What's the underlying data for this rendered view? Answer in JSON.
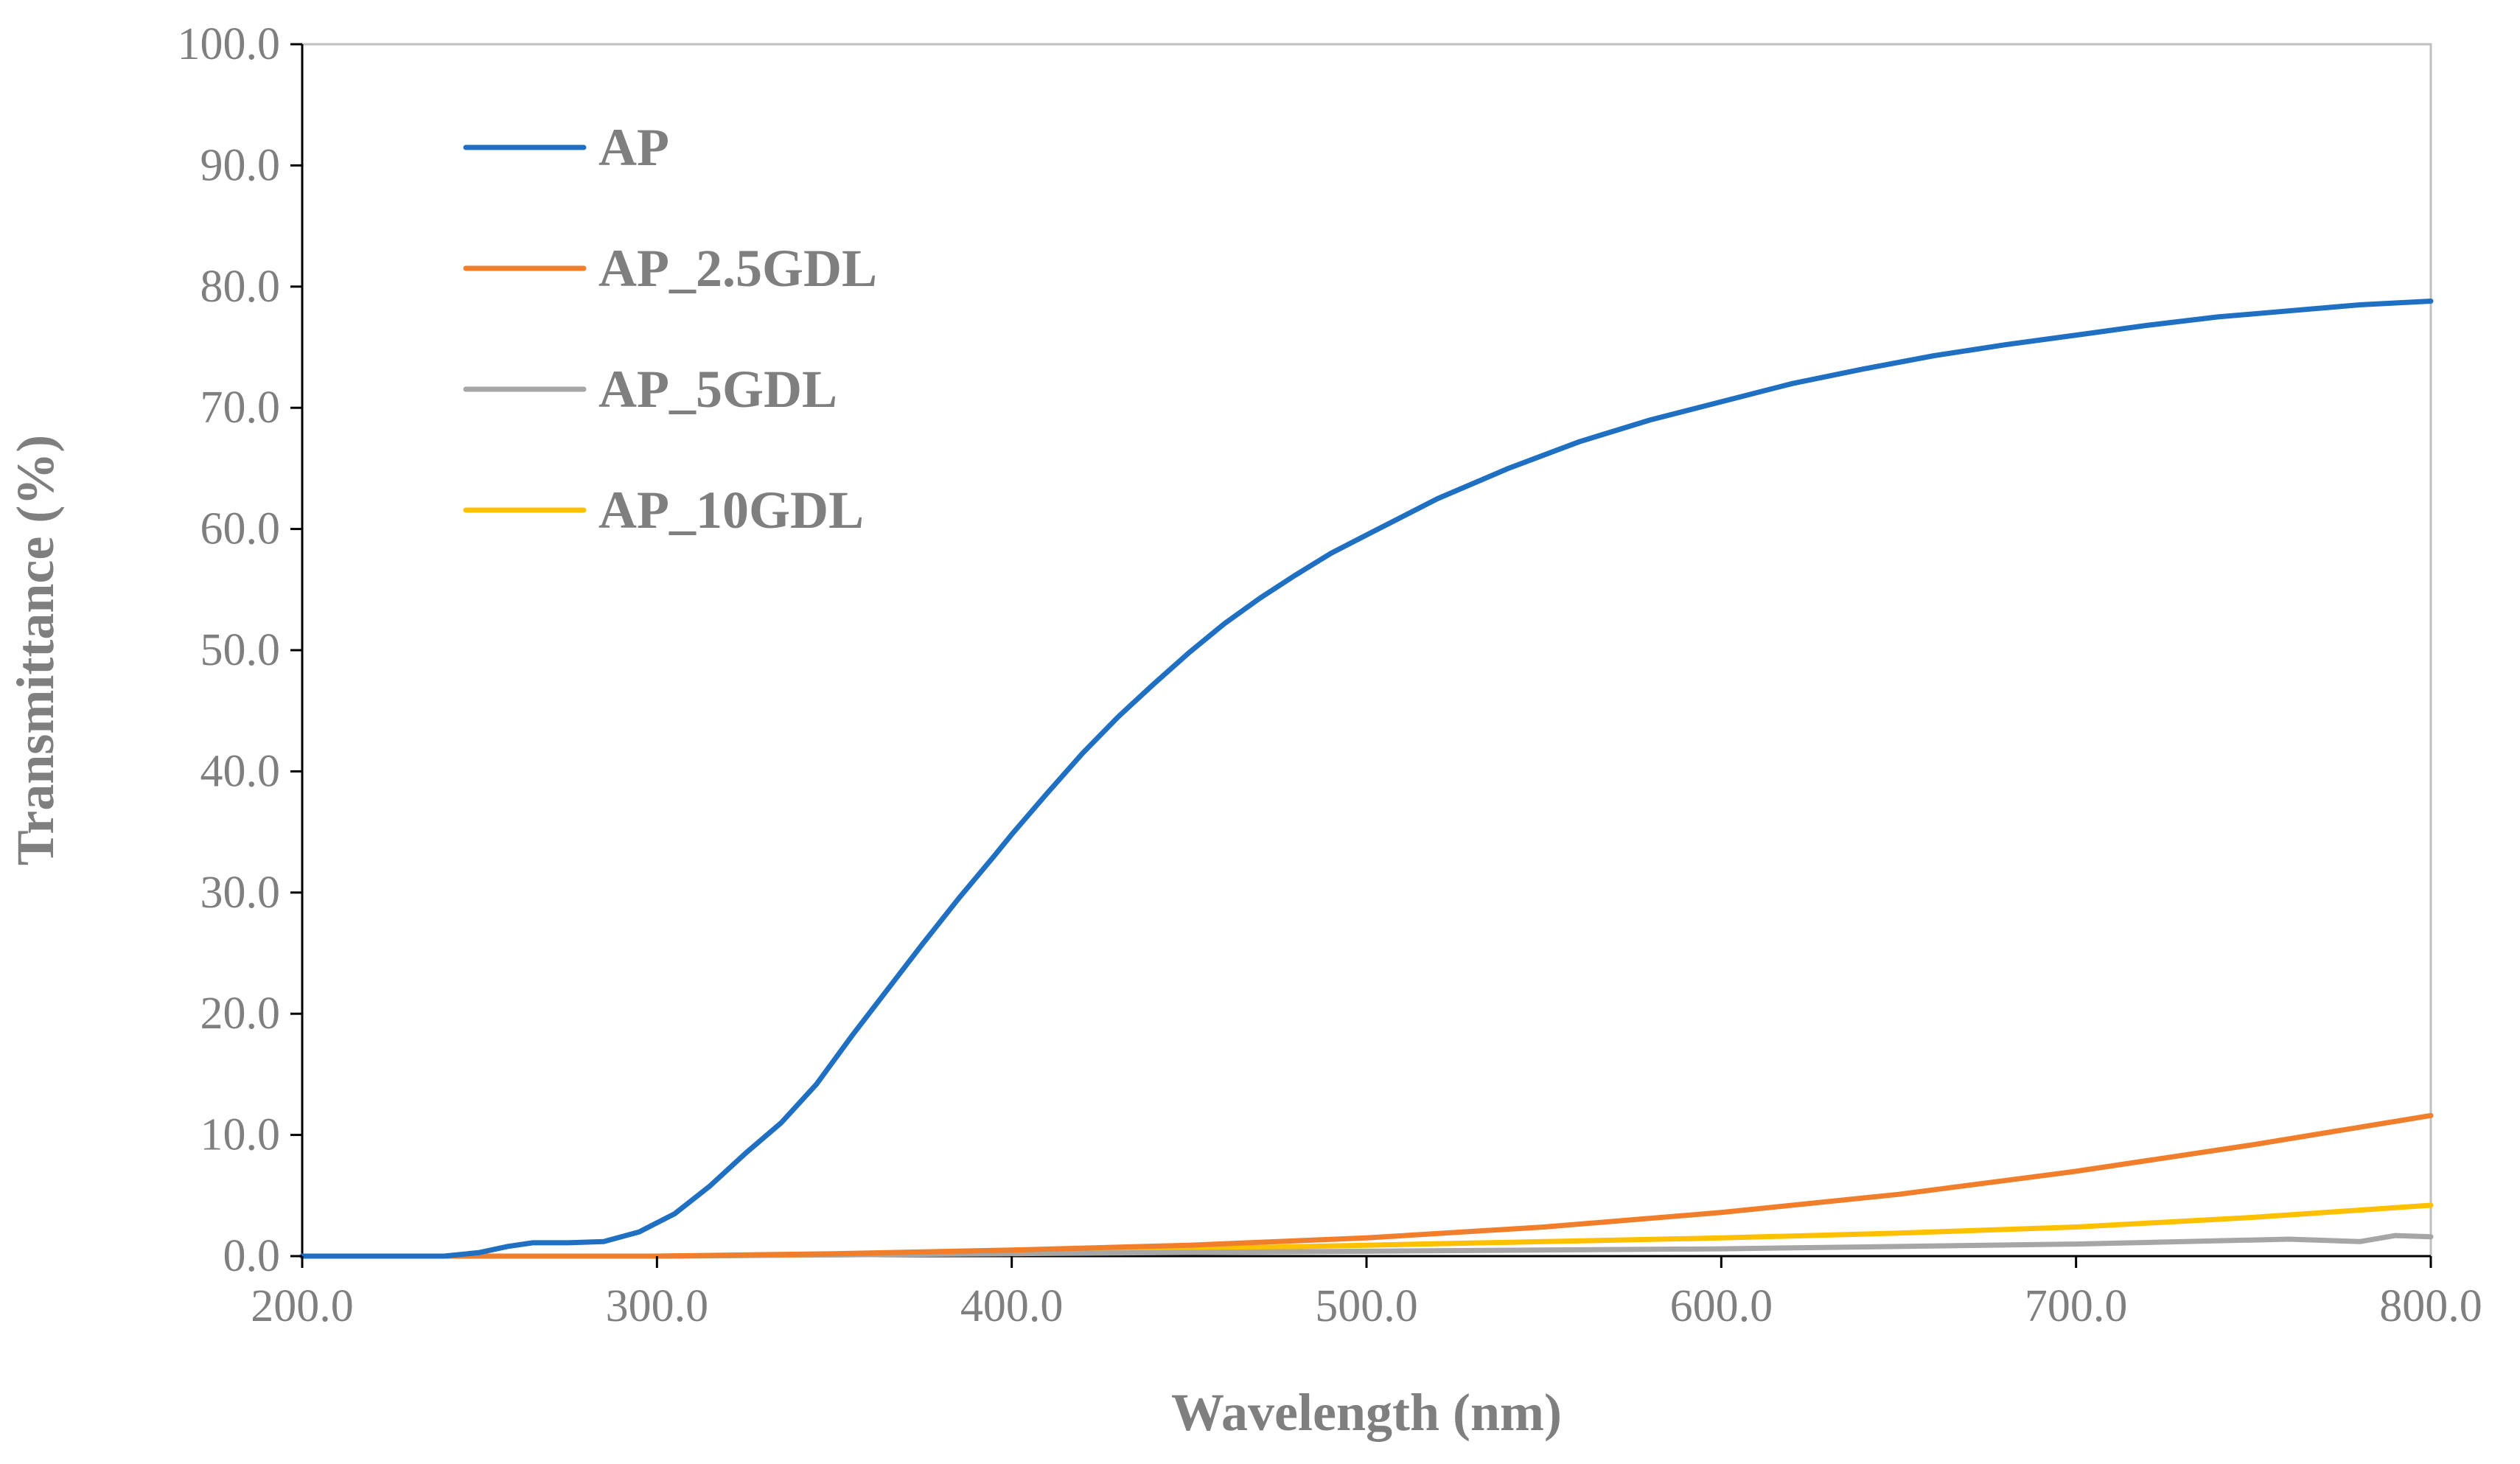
{
  "chart_data": {
    "type": "line",
    "xlabel": "Wavelength (nm)",
    "ylabel": "Transmittance (%)",
    "xlim": [
      200.0,
      800.0
    ],
    "ylim": [
      0.0,
      100.0
    ],
    "x_ticks": [
      "200.0",
      "300.0",
      "400.0",
      "500.0",
      "600.0",
      "700.0",
      "800.0"
    ],
    "y_ticks": [
      "0.0",
      "10.0",
      "20.0",
      "30.0",
      "40.0",
      "50.0",
      "60.0",
      "70.0",
      "80.0",
      "90.0",
      "100.0"
    ],
    "x_tick_values": [
      200,
      300,
      400,
      500,
      600,
      700,
      800
    ],
    "y_tick_values": [
      0,
      10,
      20,
      30,
      40,
      50,
      60,
      70,
      80,
      90,
      100
    ],
    "grid": false,
    "legend_position": "top-left",
    "series": [
      {
        "name": "AP",
        "color": "#1f6fc2",
        "x": [
          200,
          240,
          250,
          258,
          265,
          275,
          285,
          295,
          305,
          315,
          325,
          335,
          345,
          355,
          365,
          375,
          385,
          395,
          400,
          410,
          420,
          430,
          440,
          450,
          460,
          470,
          480,
          490,
          500,
          520,
          540,
          560,
          580,
          600,
          620,
          640,
          660,
          680,
          700,
          720,
          740,
          760,
          780,
          800
        ],
        "y": [
          0.0,
          0.0,
          0.3,
          0.8,
          1.1,
          1.1,
          1.2,
          2.0,
          3.5,
          5.8,
          8.5,
          11.0,
          14.2,
          18.2,
          22.0,
          25.8,
          29.5,
          33.0,
          34.8,
          38.2,
          41.5,
          44.5,
          47.2,
          49.8,
          52.2,
          54.3,
          56.2,
          58.0,
          59.5,
          62.5,
          65.0,
          67.2,
          69.0,
          70.5,
          72.0,
          73.2,
          74.3,
          75.2,
          76.0,
          76.8,
          77.5,
          78.0,
          78.5,
          78.8
        ]
      },
      {
        "name": "AP_2.5GDL",
        "color": "#f07e2b",
        "x": [
          200,
          300,
          350,
          400,
          450,
          500,
          550,
          600,
          650,
          700,
          750,
          800
        ],
        "y": [
          0.0,
          0.0,
          0.2,
          0.5,
          0.9,
          1.5,
          2.4,
          3.6,
          5.1,
          7.0,
          9.2,
          11.6
        ]
      },
      {
        "name": "AP_5GDL",
        "color": "#a6a6a6",
        "x": [
          200,
          300,
          400,
          500,
          600,
          700,
          760,
          780,
          790,
          800
        ],
        "y": [
          0.0,
          0.0,
          0.2,
          0.4,
          0.6,
          1.0,
          1.4,
          1.2,
          1.7,
          1.6
        ]
      },
      {
        "name": "AP_10GDL",
        "color": "#ffc000",
        "x": [
          200,
          300,
          350,
          400,
          450,
          500,
          550,
          600,
          650,
          700,
          750,
          800
        ],
        "y": [
          0.0,
          0.0,
          0.1,
          0.3,
          0.6,
          0.9,
          1.2,
          1.5,
          1.9,
          2.4,
          3.2,
          4.2
        ]
      }
    ]
  }
}
